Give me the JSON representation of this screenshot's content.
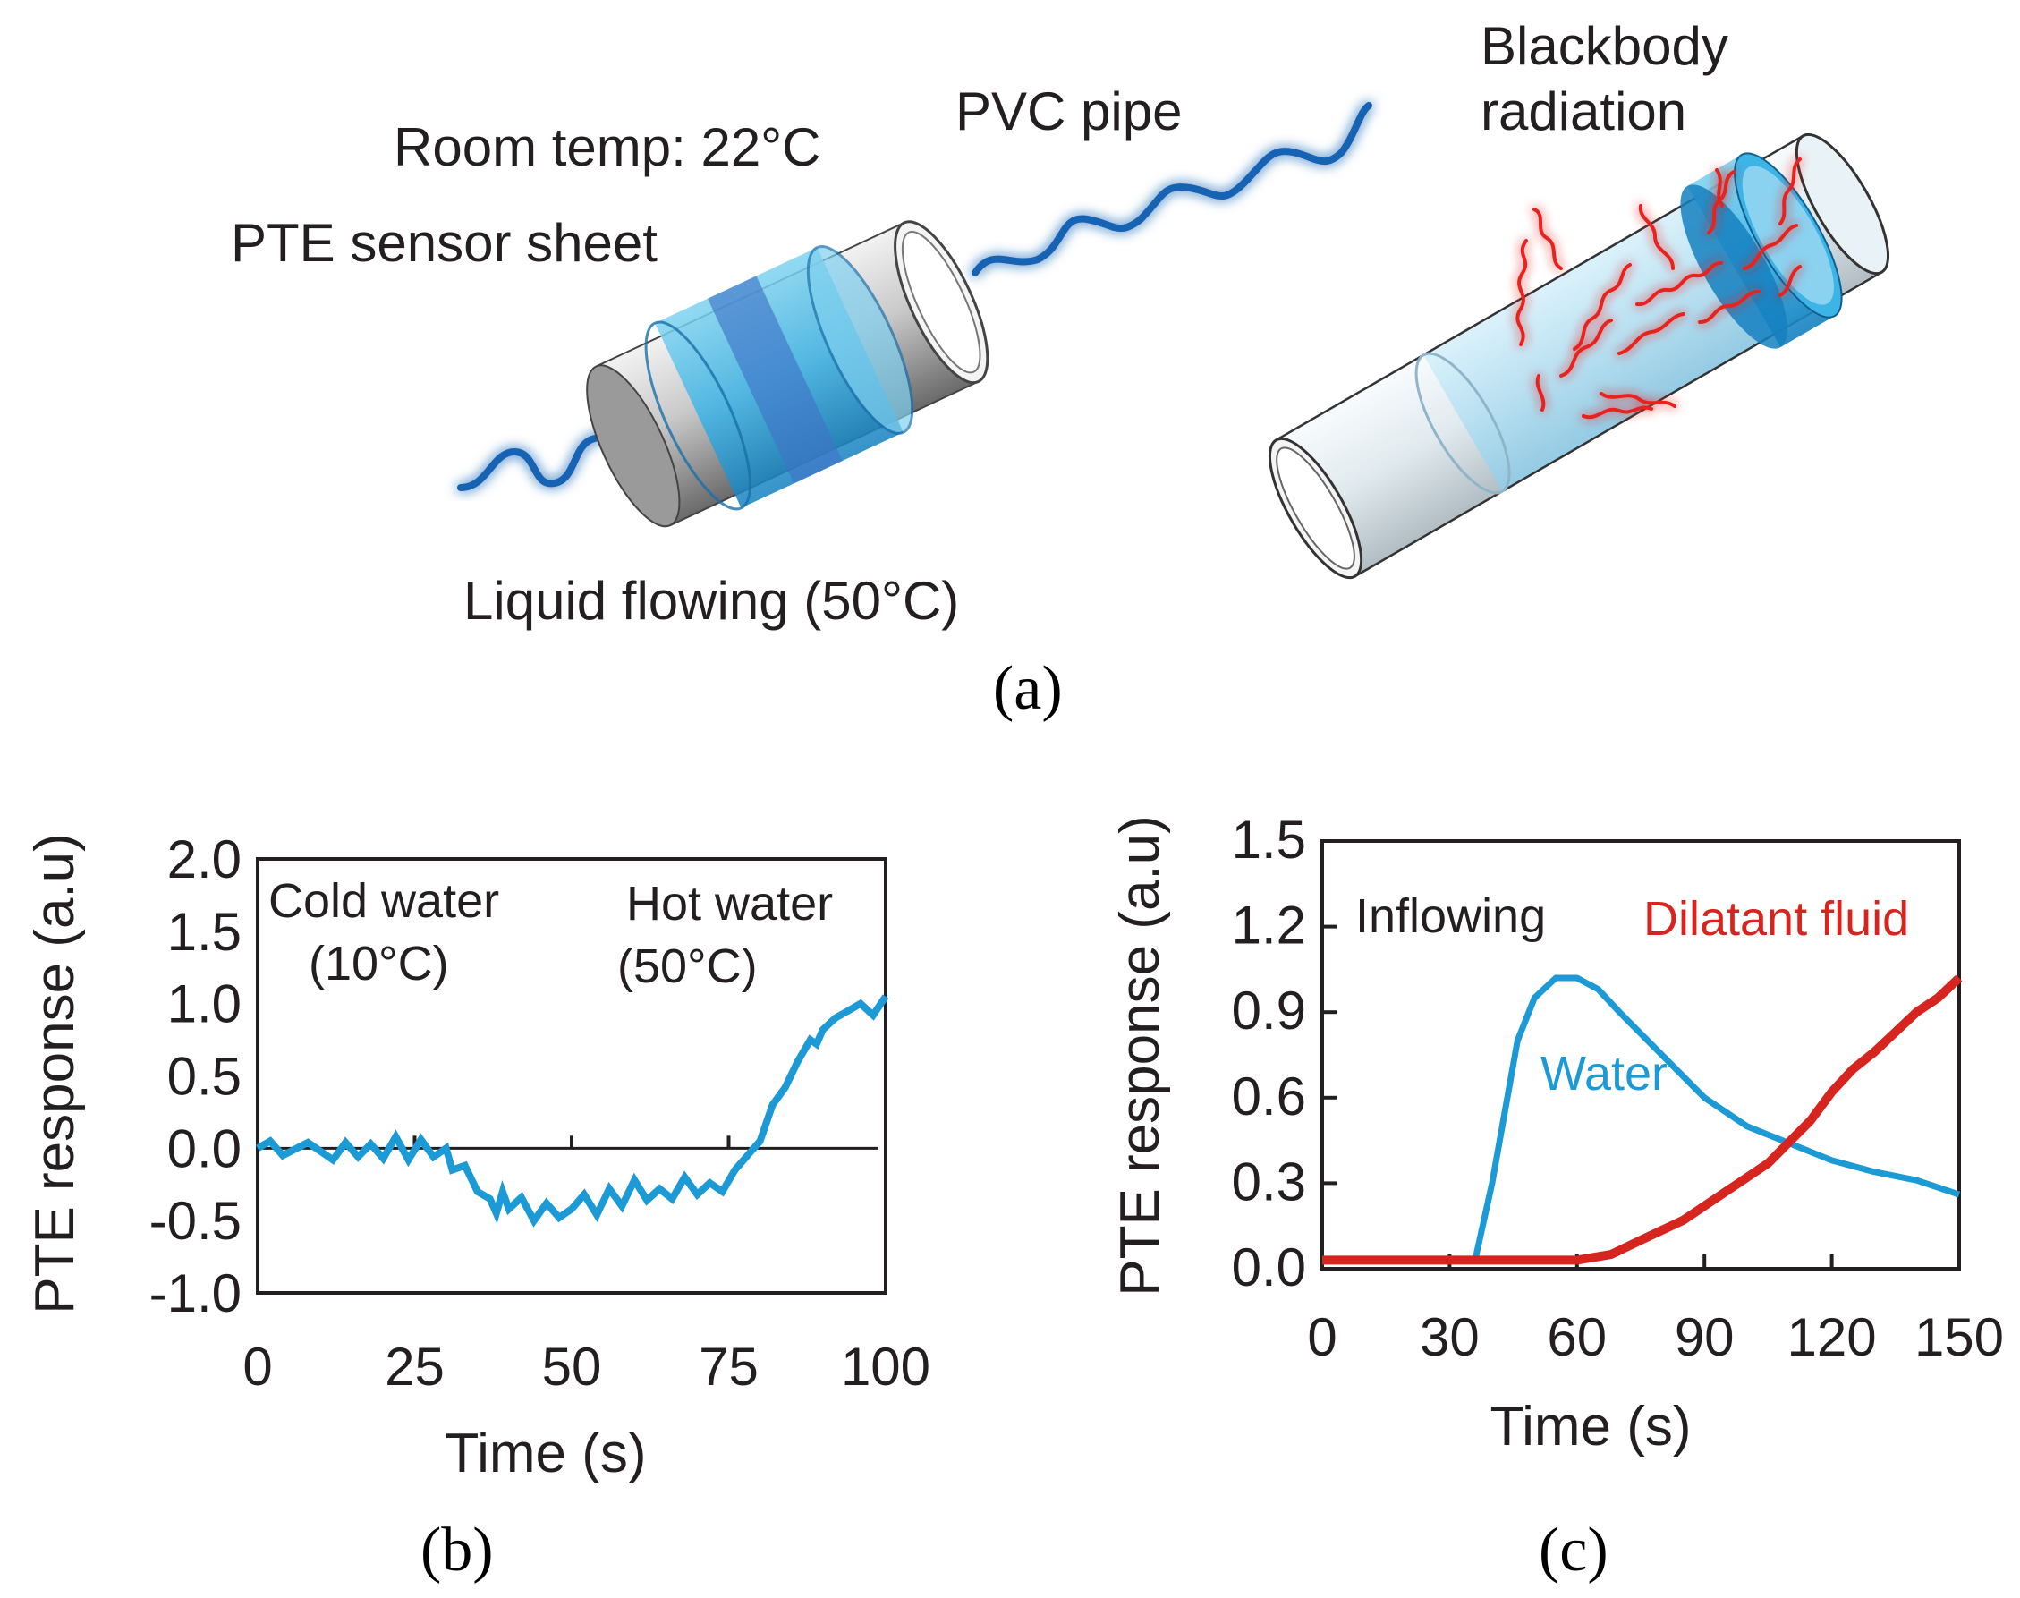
{
  "colors": {
    "water": "#1b9ad6",
    "dilatant": "#d6251f",
    "wave": "#1464b4",
    "heat": "#e8231f",
    "text": "#231f20"
  },
  "panel_a": {
    "room_temp": "Room temp: 22°C",
    "pvc_pipe": "PVC pipe",
    "blackbody_line1": "Blackbody",
    "blackbody_line2": "radiation",
    "sensor_sheet": "PTE sensor sheet",
    "liquid_flowing": "Liquid flowing (50°C)",
    "icons": [
      "pipe-with-sensor-icon",
      "pipe-radiation-icon",
      "infrared-wave-icon"
    ]
  },
  "captions": {
    "a": "(a)",
    "b": "(b)",
    "c": "(c)"
  },
  "chart_data": [
    {
      "type": "line",
      "id": "b",
      "xlabel": "Time (s)",
      "ylabel": "PTE response (a.u)",
      "xlim": [
        0,
        100
      ],
      "ylim": [
        -1.0,
        2.0
      ],
      "xticks": [
        0,
        25,
        50,
        75,
        100
      ],
      "xtick_labels": [
        "0",
        "25",
        "50",
        "75",
        "100"
      ],
      "yticks": [
        2.0,
        1.5,
        1.0,
        0.5,
        0.0,
        -0.5,
        -1.0
      ],
      "ytick_labels": [
        "2.0",
        "1.5",
        "1.0",
        "0.5",
        "0.0",
        "-0.5",
        "-1.0"
      ],
      "annotations": [
        {
          "line1": "Cold water",
          "line2": "(10°C)"
        },
        {
          "line1": "Hot water",
          "line2": "(50°C)"
        }
      ],
      "baseline": 0.0,
      "series": [
        {
          "name": "PTE response",
          "color": "#1b9ad6",
          "x": [
            0,
            2,
            4,
            8,
            12,
            14,
            16,
            18,
            20,
            22,
            24,
            26,
            28,
            30,
            31,
            33,
            35,
            37,
            38,
            39,
            40,
            42,
            44,
            46,
            48,
            50,
            52,
            54,
            56,
            58,
            60,
            62,
            64,
            66,
            68,
            70,
            72,
            74,
            76,
            78,
            80,
            82,
            84,
            86,
            88,
            89,
            90,
            92,
            94,
            96,
            98,
            100
          ],
          "y": [
            0.0,
            0.05,
            -0.05,
            0.04,
            -0.08,
            0.04,
            -0.06,
            0.03,
            -0.07,
            0.08,
            -0.08,
            0.06,
            -0.06,
            0.0,
            -0.15,
            -0.12,
            -0.3,
            -0.35,
            -0.45,
            -0.3,
            -0.42,
            -0.34,
            -0.5,
            -0.38,
            -0.48,
            -0.42,
            -0.32,
            -0.46,
            -0.28,
            -0.4,
            -0.22,
            -0.36,
            -0.28,
            -0.35,
            -0.2,
            -0.32,
            -0.24,
            -0.3,
            -0.15,
            -0.05,
            0.05,
            0.3,
            0.42,
            0.6,
            0.75,
            0.72,
            0.82,
            0.9,
            0.95,
            1.0,
            0.92,
            1.05
          ]
        }
      ]
    },
    {
      "type": "line",
      "id": "c",
      "xlabel": "Time (s)",
      "ylabel": "PTE response (a.u)",
      "xlim": [
        0,
        150
      ],
      "ylim": [
        0.0,
        1.5
      ],
      "xticks": [
        0,
        30,
        60,
        90,
        120,
        150
      ],
      "xtick_labels": [
        "0",
        "30",
        "60",
        "90",
        "120",
        "150"
      ],
      "yticks": [
        1.5,
        1.2,
        0.9,
        0.6,
        0.3,
        0.0
      ],
      "ytick_labels": [
        "1.5",
        "1.2",
        "0.9",
        "0.6",
        "0.3",
        "0.0"
      ],
      "annotations": [
        {
          "text": "Inflowing"
        }
      ],
      "series": [
        {
          "name": "Water",
          "color": "#1b9ad6",
          "x": [
            0,
            30,
            36,
            40,
            43,
            46,
            50,
            55,
            60,
            65,
            70,
            80,
            90,
            100,
            110,
            120,
            130,
            140,
            150
          ],
          "y": [
            0.03,
            0.03,
            0.03,
            0.3,
            0.55,
            0.8,
            0.95,
            1.02,
            1.02,
            0.98,
            0.9,
            0.75,
            0.6,
            0.5,
            0.44,
            0.38,
            0.34,
            0.31,
            0.26
          ]
        },
        {
          "name": "Dilatant fluid",
          "color": "#d6251f",
          "x": [
            0,
            60,
            68,
            75,
            85,
            95,
            105,
            115,
            120,
            125,
            130,
            135,
            140,
            145,
            150
          ],
          "y": [
            0.03,
            0.03,
            0.05,
            0.1,
            0.17,
            0.27,
            0.37,
            0.52,
            0.62,
            0.7,
            0.76,
            0.83,
            0.9,
            0.95,
            1.02
          ]
        }
      ]
    }
  ]
}
